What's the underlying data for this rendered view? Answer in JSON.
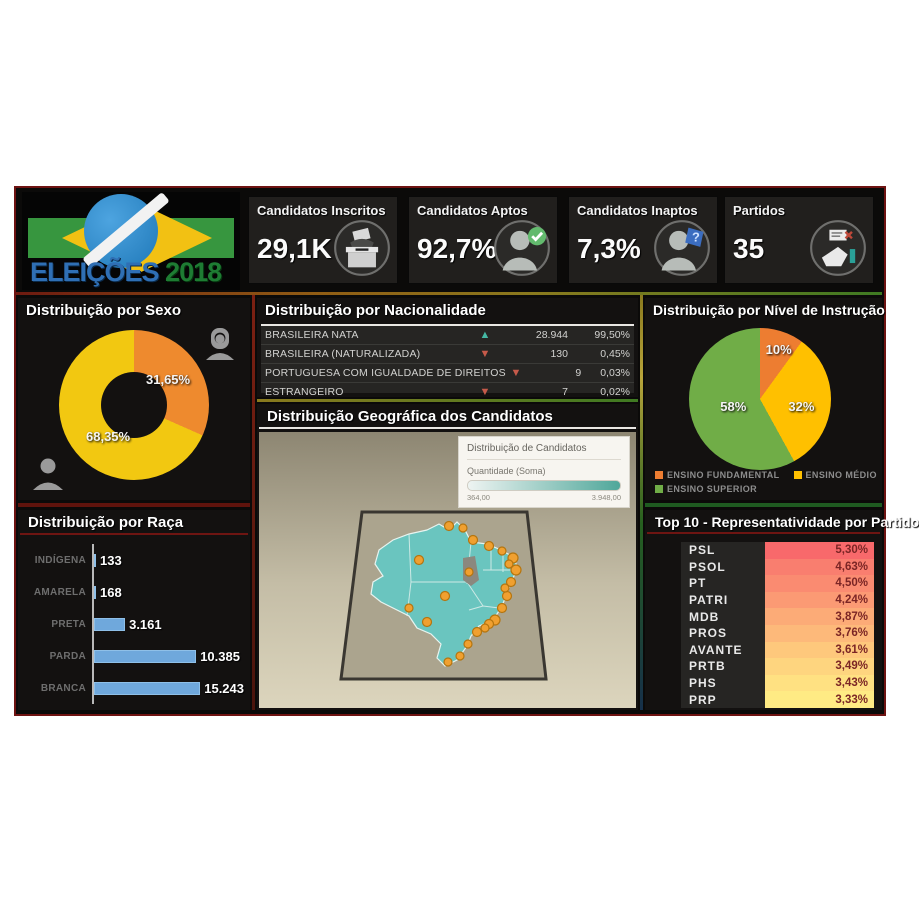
{
  "logo": {
    "title": "ELEIÇÕES",
    "year": "2018"
  },
  "kpis": [
    {
      "label": "Candidatos Inscritos",
      "value": "29,1K",
      "icon": "ballot-box-icon"
    },
    {
      "label": "Candidatos Aptos",
      "value": "92,7%",
      "icon": "person-check-icon"
    },
    {
      "label": "Candidatos Inaptos",
      "value": "7,3%",
      "icon": "person-question-icon"
    },
    {
      "label": "Partidos",
      "value": "35",
      "icon": "vote-hand-icon"
    }
  ],
  "chart_data": [
    {
      "id": "sexo",
      "type": "pie",
      "subtype": "donut",
      "title": "Distribuição por Sexo",
      "slices": [
        {
          "label": "Feminino",
          "value_pct": 31.65,
          "display": "31,65%",
          "color": "#ee8a2e"
        },
        {
          "label": "Masculino",
          "value_pct": 68.35,
          "display": "68,35%",
          "color": "#f2c811"
        }
      ],
      "legend_icons": [
        "female-icon",
        "male-icon"
      ]
    },
    {
      "id": "raca",
      "type": "bar",
      "orientation": "horizontal",
      "title": "Distribuição por Raça",
      "categories": [
        "INDÍGENA",
        "AMARELA",
        "PRETA",
        "PARDA",
        "BRANCA"
      ],
      "values": [
        133,
        168,
        3161,
        10385,
        15243
      ],
      "value_labels": [
        "133",
        "168",
        "3.161",
        "10.385",
        "15.243"
      ],
      "bar_color": "#6fa8dc",
      "xlim": [
        0,
        15243
      ]
    },
    {
      "id": "nacionalidade",
      "type": "table",
      "title": "Distribuição por Nacionalidade",
      "rows": [
        {
          "label": "BRASILEIRA NATA",
          "trend": "up",
          "value": "28.944",
          "pct": "99,50%"
        },
        {
          "label": "BRASILEIRA (NATURALIZADA)",
          "trend": "down",
          "value": "130",
          "pct": "0,45%"
        },
        {
          "label": "PORTUGUESA COM IGUALDADE DE DIREITOS",
          "trend": "down",
          "value": "9",
          "pct": "0,03%"
        },
        {
          "label": "ESTRANGEIRO",
          "trend": "down",
          "value": "7",
          "pct": "0,02%"
        }
      ],
      "trend_up_color": "#45b8a4",
      "trend_down_color": "#c65a4a"
    },
    {
      "id": "mapa",
      "type": "map",
      "title": "Distribuição Geográfica dos Candidatos",
      "legend": {
        "title": "Distribuição de Candidatos",
        "measure": "Quantidade (Soma)",
        "min": "364,00",
        "max": "3.948,00",
        "gradient": [
          "#eef4f2",
          "#4fa79a"
        ]
      },
      "marker_color": "#f0a030"
    },
    {
      "id": "instrucao",
      "type": "pie",
      "title": "Distribuição por Nível de Instrução",
      "slices": [
        {
          "label": "ENSINO FUNDAMENTAL",
          "value_pct": 10,
          "display": "10%",
          "color": "#ed7d31"
        },
        {
          "label": "ENSINO MÉDIO",
          "value_pct": 32,
          "display": "32%",
          "color": "#ffc000"
        },
        {
          "label": "ENSINO SUPERIOR",
          "value_pct": 58,
          "display": "58%",
          "color": "#70ad47"
        }
      ],
      "legend_position": "bottom"
    },
    {
      "id": "partidos",
      "type": "table",
      "title": "Top 10 - Representatividade por Partido",
      "rows": [
        {
          "party": "PSL",
          "pct": "5,30%",
          "heat": "#f8696b"
        },
        {
          "party": "PSOL",
          "pct": "4,63%",
          "heat": "#f97e6f"
        },
        {
          "party": "PT",
          "pct": "4,50%",
          "heat": "#fa8b71"
        },
        {
          "party": "PATRI",
          "pct": "4,24%",
          "heat": "#fb9a74"
        },
        {
          "party": "MDB",
          "pct": "3,87%",
          "heat": "#fcab77"
        },
        {
          "party": "PROS",
          "pct": "3,76%",
          "heat": "#fdb97a"
        },
        {
          "party": "AVANTE",
          "pct": "3,61%",
          "heat": "#fec87c"
        },
        {
          "party": "PRTB",
          "pct": "3,49%",
          "heat": "#fed57f"
        },
        {
          "party": "PHS",
          "pct": "3,43%",
          "heat": "#ffe182"
        },
        {
          "party": "PRP",
          "pct": "3,33%",
          "heat": "#ffeb84"
        }
      ],
      "value_text_color": "#7b2525"
    }
  ]
}
